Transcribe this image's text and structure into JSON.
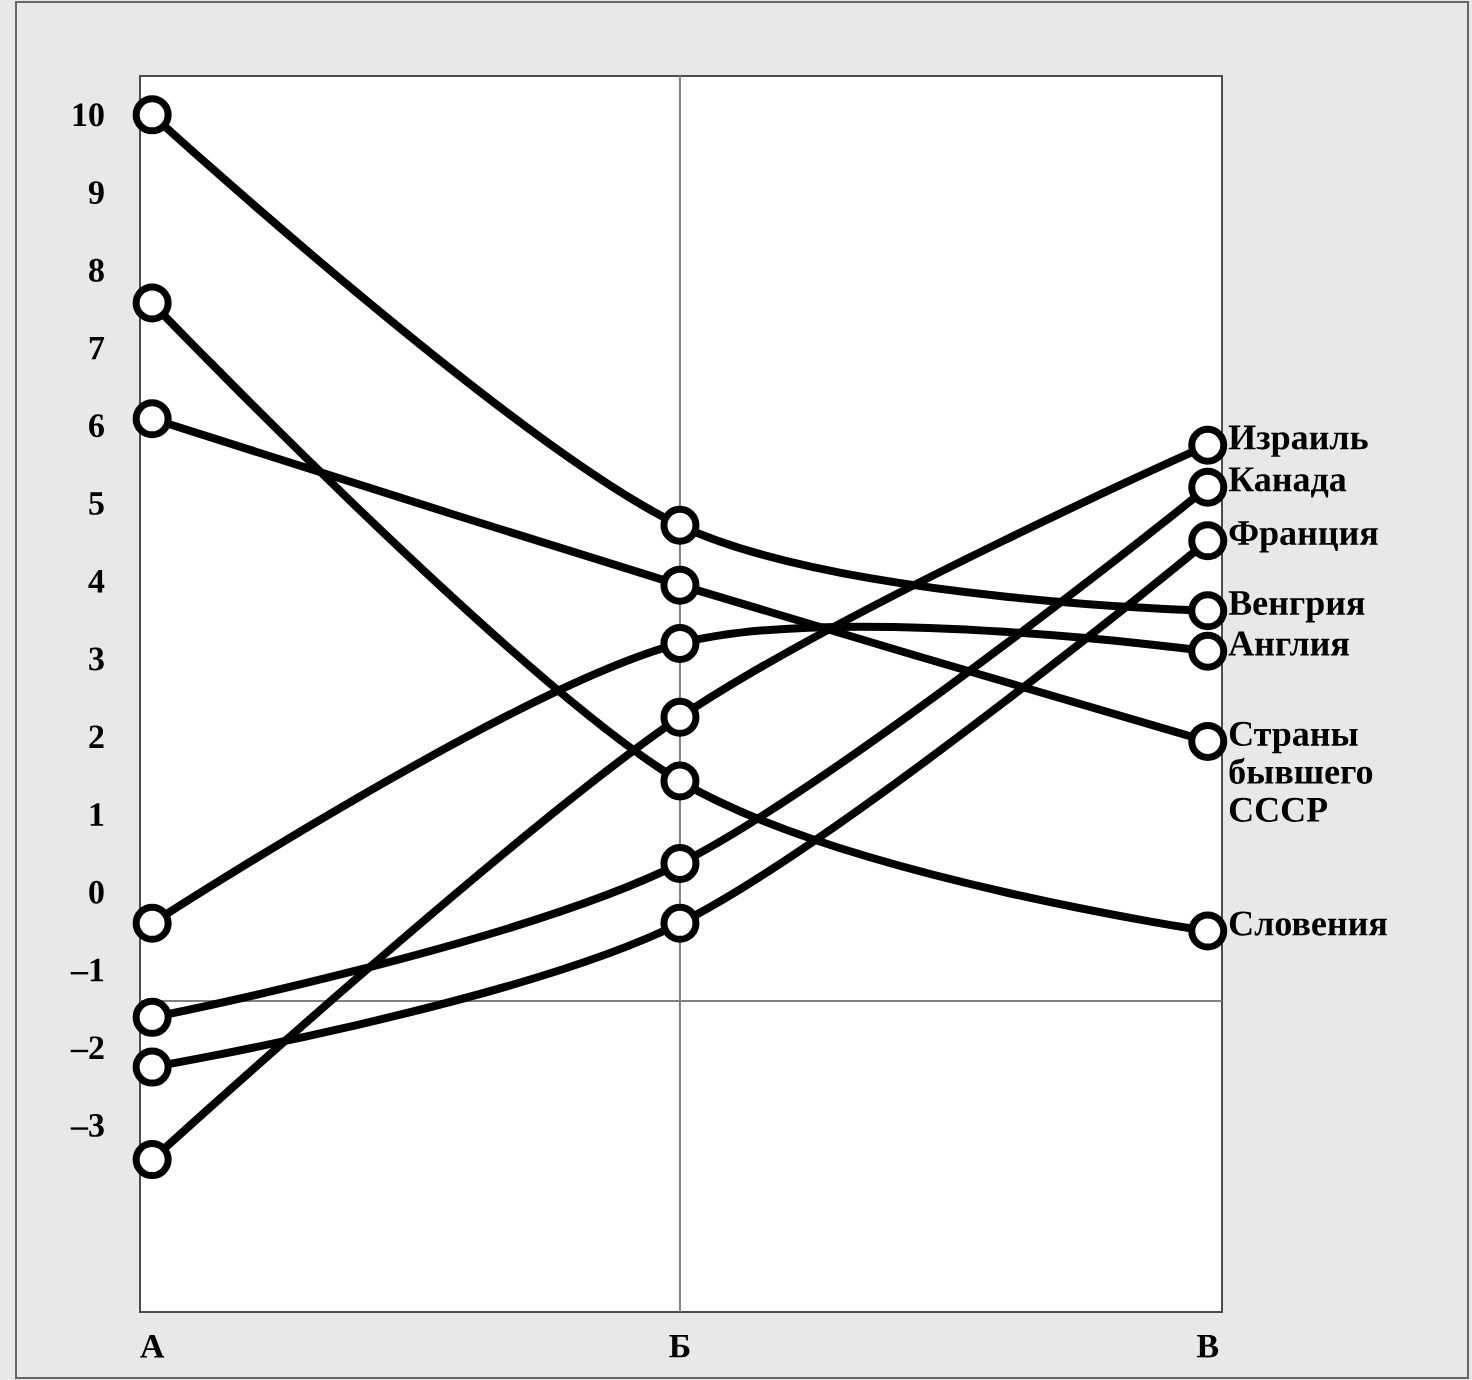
{
  "chart_data": {
    "type": "line",
    "categories": [
      "А",
      "Б",
      "В"
    ],
    "ylim": [
      -5.4,
      10.5
    ],
    "yticks": [
      {
        "value": -3,
        "label": "–3"
      },
      {
        "value": -2,
        "label": "–2"
      },
      {
        "value": -1,
        "label": "–1"
      },
      0,
      1,
      2,
      3,
      4,
      5,
      6,
      7,
      8,
      9,
      10
    ],
    "marker": "circle",
    "line_style": "solid",
    "legend": false,
    "grid": false,
    "ref_lines": [
      {
        "axis": "x",
        "value": "Б",
        "color": "#808080"
      },
      {
        "axis": "y",
        "value": -1.4,
        "color": "#808080"
      }
    ],
    "series": [
      {
        "name": "Израиль",
        "color": "#000000",
        "values": [
          -3.44,
          2.25,
          5.75
        ]
      },
      {
        "name": "Канада",
        "color": "#000000",
        "values": [
          -1.61,
          0.37,
          5.21
        ]
      },
      {
        "name": "Франция",
        "color": "#000000",
        "values": [
          -2.25,
          -0.4,
          4.52
        ]
      },
      {
        "name": "Венгрия",
        "color": "#000000",
        "values": [
          10,
          4.72,
          3.62
        ]
      },
      {
        "name": "Англия",
        "color": "#000000",
        "values": [
          -0.4,
          3.2,
          3.1
        ]
      },
      {
        "name": "Страны бывшего СССР",
        "color": "#000000",
        "values": [
          6.09,
          3.95,
          1.94
        ]
      },
      {
        "name": "Словения",
        "color": "#000000",
        "values": [
          7.58,
          1.43,
          -0.5
        ]
      }
    ]
  }
}
